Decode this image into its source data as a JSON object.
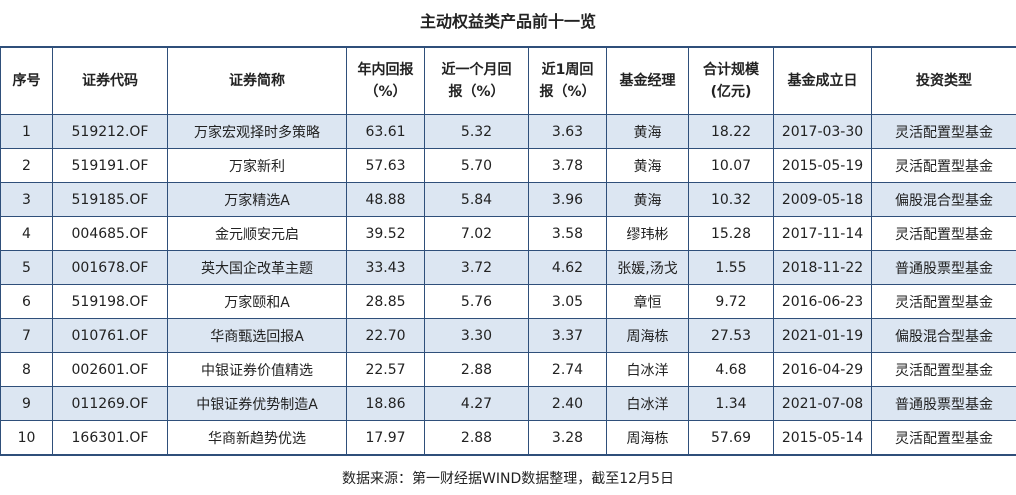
{
  "header": {
    "title": "主动权益类产品前十一览"
  },
  "table": {
    "columns": [
      "序号",
      "证券代码",
      "证券简称",
      "年内回报\n（%）",
      "近一个月回\n报（%）",
      "近1周回\n报（%）",
      "基金经理",
      "合计规模\n(亿元)",
      "基金成立日",
      "投资类型"
    ],
    "rows": [
      [
        "1",
        "519212.OF",
        "万家宏观择时多策略",
        "63.61",
        "5.32",
        "3.63",
        "黄海",
        "18.22",
        "2017-03-30",
        "灵活配置型基金"
      ],
      [
        "2",
        "519191.OF",
        "万家新利",
        "57.63",
        "5.70",
        "3.78",
        "黄海",
        "10.07",
        "2015-05-19",
        "灵活配置型基金"
      ],
      [
        "3",
        "519185.OF",
        "万家精选A",
        "48.88",
        "5.84",
        "3.96",
        "黄海",
        "10.32",
        "2009-05-18",
        "偏股混合型基金"
      ],
      [
        "4",
        "004685.OF",
        "金元顺安元启",
        "39.52",
        "7.02",
        "3.58",
        "缪玮彬",
        "15.28",
        "2017-11-14",
        "灵活配置型基金"
      ],
      [
        "5",
        "001678.OF",
        "英大国企改革主题",
        "33.43",
        "3.72",
        "4.62",
        "张媛,汤戈",
        "1.55",
        "2018-11-22",
        "普通股票型基金"
      ],
      [
        "6",
        "519198.OF",
        "万家颐和A",
        "28.85",
        "5.76",
        "3.05",
        "章恒",
        "9.72",
        "2016-06-23",
        "灵活配置型基金"
      ],
      [
        "7",
        "010761.OF",
        "华商甄选回报A",
        "22.70",
        "3.30",
        "3.37",
        "周海栋",
        "27.53",
        "2021-01-19",
        "偏股混合型基金"
      ],
      [
        "8",
        "002601.OF",
        "中银证券价值精选",
        "22.57",
        "2.88",
        "2.74",
        "白冰洋",
        "4.68",
        "2016-04-29",
        "灵活配置型基金"
      ],
      [
        "9",
        "011269.OF",
        "中银证券优势制造A",
        "18.86",
        "4.27",
        "2.40",
        "白冰洋",
        "1.34",
        "2021-07-08",
        "普通股票型基金"
      ],
      [
        "10",
        "166301.OF",
        "华商新趋势优选",
        "17.97",
        "2.88",
        "3.28",
        "周海栋",
        "57.69",
        "2015-05-14",
        "灵活配置型基金"
      ]
    ]
  },
  "footer": {
    "note": "数据来源：第一财经据WIND数据整理，截至12月5日"
  }
}
